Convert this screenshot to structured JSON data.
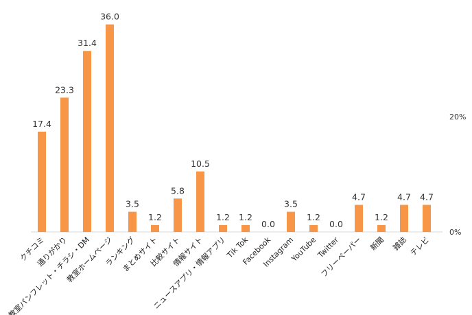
{
  "chart_data": {
    "type": "bar",
    "categories": [
      "クチコミ",
      "通りがかり",
      "教室パンフレット・チラシ・DM",
      "教室ホームページ",
      "ランキング",
      "まとめサイト",
      "比較サイト",
      "情報サイト",
      "ニュースアプリ・情報アプリ",
      "Tik Tok",
      "Facebook",
      "Instagram",
      "YouTube",
      "Twitter",
      "フリーペーパー",
      "新聞",
      "雑誌",
      "テレビ"
    ],
    "values": [
      17.4,
      23.3,
      31.4,
      36.0,
      3.5,
      1.2,
      5.8,
      10.5,
      1.2,
      1.2,
      0.0,
      3.5,
      1.2,
      0.0,
      4.7,
      1.2,
      4.7,
      4.7
    ],
    "value_labels": [
      "17.4",
      "23.3",
      "31.4",
      "36.0",
      "3.5",
      "1.2",
      "5.8",
      "10.5",
      "1.2",
      "1.2",
      "0.0",
      "3.5",
      "1.2",
      "0.0",
      "4.7",
      "1.2",
      "4.7",
      "4.7"
    ],
    "y_ticks": [
      {
        "value": 0,
        "label": "0%"
      },
      {
        "value": 20,
        "label": "20%"
      }
    ],
    "ylim": [
      0,
      40
    ],
    "y_axis_side": "right",
    "grid": false,
    "bar_color": "#f79646",
    "title": "",
    "xlabel": "",
    "ylabel": ""
  }
}
